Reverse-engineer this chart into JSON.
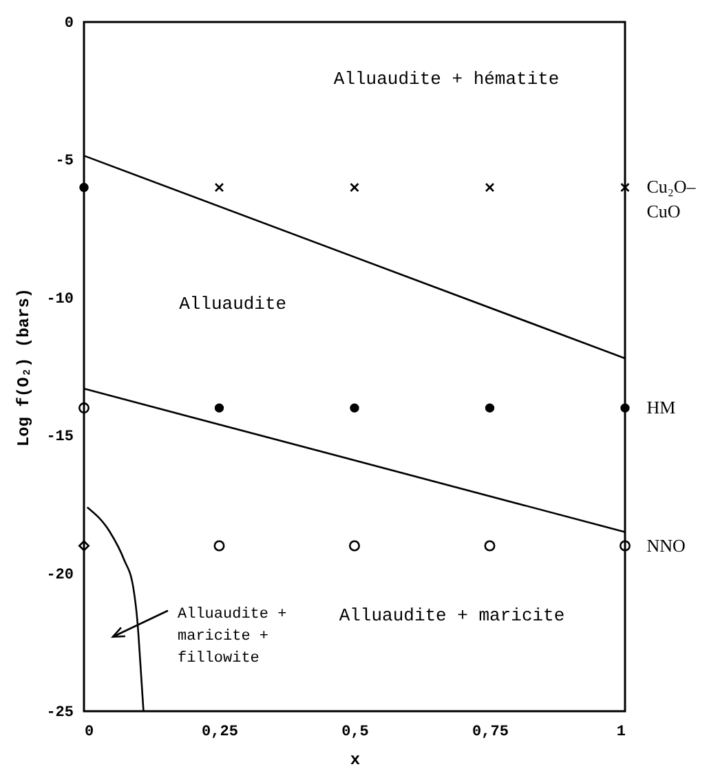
{
  "chart_data": {
    "type": "scatter",
    "xlabel": "x",
    "ylabel": "Log f(O₂) (bars)",
    "xlim": [
      0,
      1
    ],
    "xticks": [
      0,
      {
        "value": 0.25,
        "label": "0,25"
      },
      {
        "value": 0.5,
        "label": "0,5"
      },
      {
        "value": 0.75,
        "label": "0,75"
      },
      1
    ],
    "ylim": [
      -25,
      0
    ],
    "yticks": [
      -25,
      -20,
      -15,
      -10,
      -5,
      0
    ],
    "series": [
      {
        "type": "line",
        "color": "#000000",
        "x": [
          0,
          1
        ],
        "values": [
          -4.85,
          -12.2
        ]
      },
      {
        "type": "line",
        "color": "#000000",
        "x": [
          0,
          1
        ],
        "values": [
          -13.3,
          -18.5
        ]
      },
      {
        "type": "line",
        "color": "#000000",
        "x": [
          0.006,
          0.048,
          0.074,
          0.091,
          0.099,
          0.105,
          0.11
        ],
        "values": [
          -17.6,
          -18.5,
          -19.5,
          -20.5,
          -21.8,
          -23.5,
          -25
        ]
      },
      {
        "color": "#000000",
        "marker": "cross",
        "x": [
          0.25,
          0.5,
          0.75,
          1
        ],
        "values": [
          -6,
          -6,
          -6,
          -6
        ]
      },
      {
        "color": "#000000",
        "marker": "circle",
        "x": [
          0,
          0.25,
          0.5,
          0.75,
          1
        ],
        "values": [
          -6,
          -14,
          -14,
          -14,
          -14
        ]
      },
      {
        "color": "#000000",
        "marker": "circle",
        "x": [
          0,
          0.25,
          0.5,
          0.75,
          1
        ],
        "values": [
          -14,
          -19,
          -19,
          -19,
          -19
        ]
      },
      {
        "color": "#000000",
        "marker": "diamond",
        "x": [
          0
        ],
        "values": [
          -19
        ]
      }
    ],
    "annotations": [
      "Alluaudite + hématite",
      "Alluaudite",
      "Alluaudite + maricite",
      "Alluaudite +\nmaricite +\nfillowite",
      "Cu₂O–\nCuO",
      "HM",
      "NNO"
    ]
  }
}
